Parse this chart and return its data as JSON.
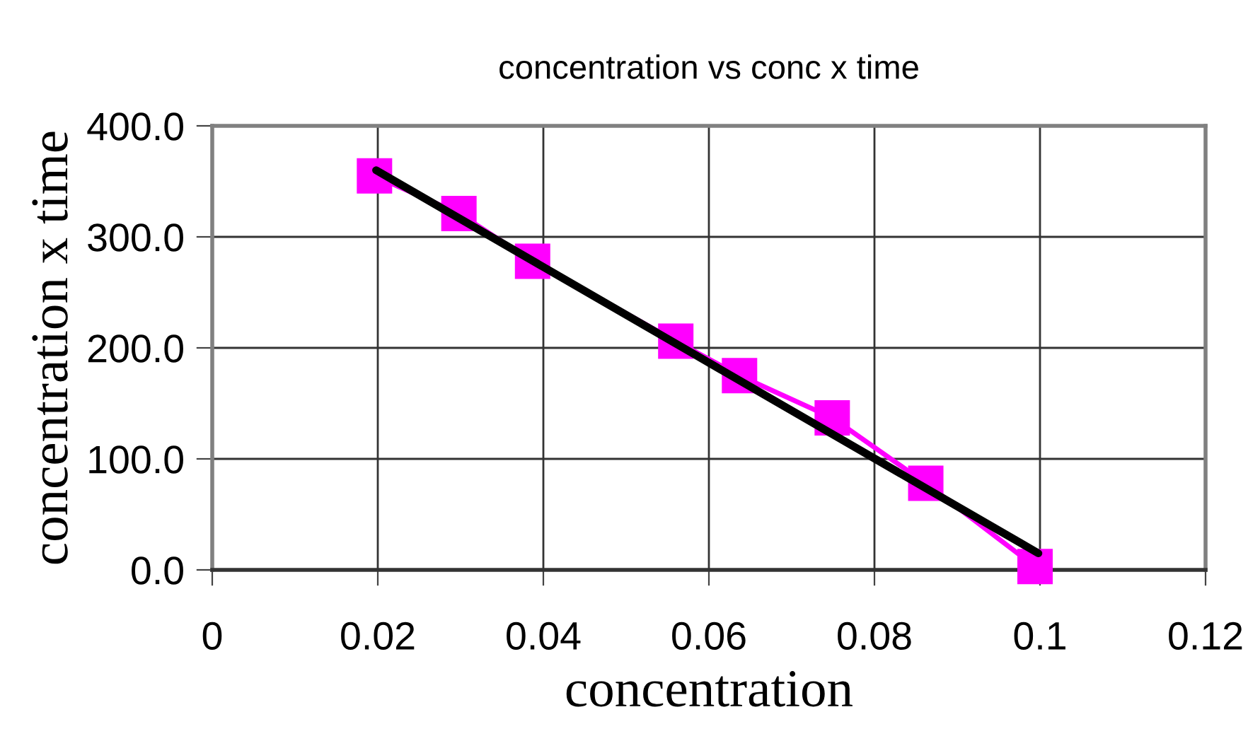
{
  "chart_data": {
    "type": "line",
    "title": "concentration vs conc x time",
    "xlabel": "concentration",
    "ylabel": "concentration x time",
    "xlim": [
      0,
      0.12
    ],
    "xticks": [
      0,
      0.02,
      0.04,
      0.06,
      0.08,
      0.1,
      0.12
    ],
    "ylim": [
      0,
      400
    ],
    "yticks": [
      {
        "value": 0,
        "label": "0.0"
      },
      {
        "value": 100,
        "label": "100.0"
      },
      {
        "value": 200,
        "label": "200.0"
      },
      {
        "value": 300,
        "label": "300.0"
      },
      {
        "value": 400,
        "label": "400.0"
      }
    ],
    "grid": true,
    "legend": false,
    "series": [
      {
        "color": "#ff00ff",
        "marker": "square",
        "x": [
          0.0196,
          0.0298,
          0.0387,
          0.056,
          0.0637,
          0.0749,
          0.0862,
          0.0994
        ],
        "values": [
          355,
          321,
          278,
          206,
          175,
          137,
          78,
          3
        ]
      },
      {
        "color": "#000000",
        "marker": "none",
        "x": [
          0.0198,
          0.0998
        ],
        "values": [
          360,
          15
        ]
      }
    ]
  }
}
